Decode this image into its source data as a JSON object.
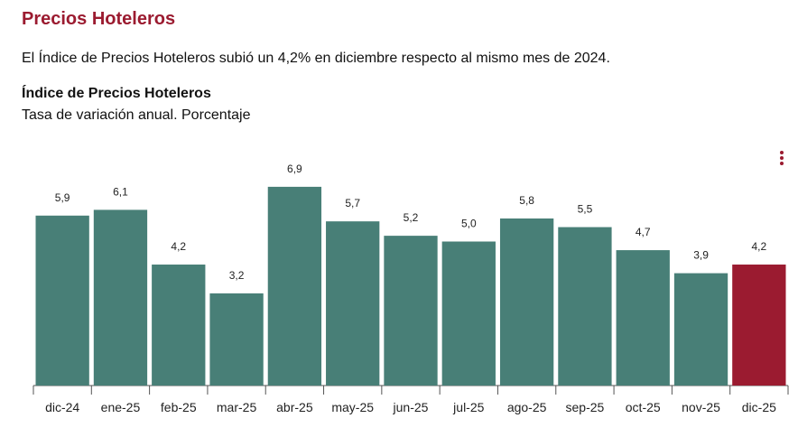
{
  "header": {
    "title": "Precios Hoteleros",
    "lead": "El Índice de Precios Hoteleros subió un 4,2% en diciembre respecto al mismo mes de 2024."
  },
  "chart_data": {
    "type": "bar",
    "title": "Índice de Precios Hoteleros",
    "subtitle": "Tasa de variación anual. Porcentaje",
    "categories": [
      "dic-24",
      "ene-25",
      "feb-25",
      "mar-25",
      "abr-25",
      "may-25",
      "jun-25",
      "jul-25",
      "ago-25",
      "sep-25",
      "oct-25",
      "nov-25",
      "dic-25"
    ],
    "values": [
      5.9,
      6.1,
      4.2,
      3.2,
      6.9,
      5.7,
      5.2,
      5.0,
      5.8,
      5.5,
      4.7,
      3.9,
      4.2
    ],
    "value_labels": [
      "5,9",
      "6,1",
      "4,2",
      "3,2",
      "6,9",
      "5,7",
      "5,2",
      "5,0",
      "5,8",
      "5,5",
      "4,7",
      "3,9",
      "4,2"
    ],
    "colors": [
      "#487f77",
      "#487f77",
      "#487f77",
      "#487f77",
      "#487f77",
      "#487f77",
      "#487f77",
      "#487f77",
      "#487f77",
      "#487f77",
      "#487f77",
      "#487f77",
      "#9b1b30"
    ]
  }
}
